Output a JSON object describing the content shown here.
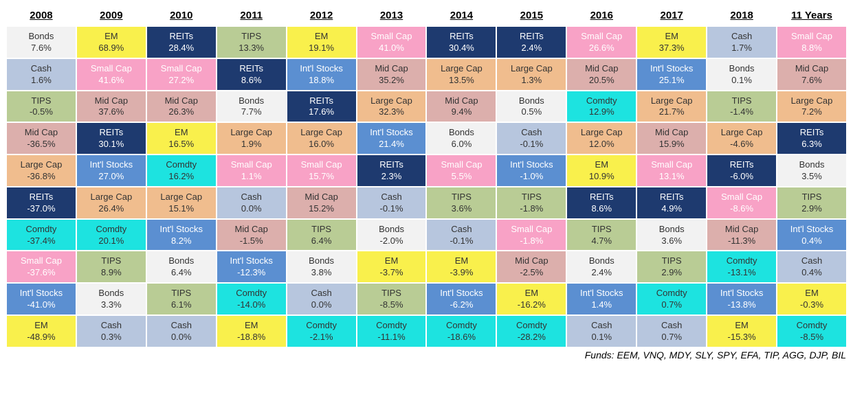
{
  "columns": [
    "2008",
    "2009",
    "2010",
    "2011",
    "2012",
    "2013",
    "2014",
    "2015",
    "2016",
    "2017",
    "2018",
    "11 Years"
  ],
  "footer": "Funds: EEM, VNQ, MDY, SLY, SPY, EFA, TIP, AGG, DJP, BIL",
  "table_bg": "#ffffff",
  "header_fontsize": 15,
  "cell_fontsize": 13,
  "palette": {
    "Bonds": {
      "bg": "#f2f2f2",
      "fg": "#333333"
    },
    "Cash": {
      "bg": "#b7c6de",
      "fg": "#333333"
    },
    "TIPS": {
      "bg": "#b9cc95",
      "fg": "#333333"
    },
    "Mid Cap": {
      "bg": "#dcafac",
      "fg": "#333333"
    },
    "Large Cap": {
      "bg": "#f0bd8e",
      "fg": "#333333"
    },
    "REITs": {
      "bg": "#1e3a6f",
      "fg": "#ffffff"
    },
    "Comdty": {
      "bg": "#1de3e0",
      "fg": "#333333"
    },
    "Small Cap": {
      "bg": "#f8a2c6",
      "fg": "#ffffff"
    },
    "Int'l Stocks": {
      "bg": "#5b8fd1",
      "fg": "#ffffff"
    },
    "EM": {
      "bg": "#f9f04c",
      "fg": "#333333"
    }
  },
  "grid": [
    [
      {
        "label": "Bonds",
        "value": "7.6%"
      },
      {
        "label": "EM",
        "value": "68.9%"
      },
      {
        "label": "REITs",
        "value": "28.4%"
      },
      {
        "label": "TIPS",
        "value": "13.3%"
      },
      {
        "label": "EM",
        "value": "19.1%"
      },
      {
        "label": "Small Cap",
        "value": "41.0%"
      },
      {
        "label": "REITs",
        "value": "30.4%"
      },
      {
        "label": "REITs",
        "value": "2.4%"
      },
      {
        "label": "Small Cap",
        "value": "26.6%"
      },
      {
        "label": "EM",
        "value": "37.3%"
      },
      {
        "label": "Cash",
        "value": "1.7%"
      },
      {
        "label": "Small Cap",
        "value": "8.8%"
      }
    ],
    [
      {
        "label": "Cash",
        "value": "1.6%"
      },
      {
        "label": "Small Cap",
        "value": "41.6%"
      },
      {
        "label": "Small Cap",
        "value": "27.2%"
      },
      {
        "label": "REITs",
        "value": "8.6%"
      },
      {
        "label": "Int'l Stocks",
        "value": "18.8%"
      },
      {
        "label": "Mid Cap",
        "value": "35.2%"
      },
      {
        "label": "Large Cap",
        "value": "13.5%"
      },
      {
        "label": "Large Cap",
        "value": "1.3%"
      },
      {
        "label": "Mid Cap",
        "value": "20.5%"
      },
      {
        "label": "Int'l Stocks",
        "value": "25.1%"
      },
      {
        "label": "Bonds",
        "value": "0.1%"
      },
      {
        "label": "Mid Cap",
        "value": "7.6%"
      }
    ],
    [
      {
        "label": "TIPS",
        "value": "-0.5%"
      },
      {
        "label": "Mid Cap",
        "value": "37.6%"
      },
      {
        "label": "Mid Cap",
        "value": "26.3%"
      },
      {
        "label": "Bonds",
        "value": "7.7%"
      },
      {
        "label": "REITs",
        "value": "17.6%"
      },
      {
        "label": "Large Cap",
        "value": "32.3%"
      },
      {
        "label": "Mid Cap",
        "value": "9.4%"
      },
      {
        "label": "Bonds",
        "value": "0.5%"
      },
      {
        "label": "Comdty",
        "value": "12.9%"
      },
      {
        "label": "Large Cap",
        "value": "21.7%"
      },
      {
        "label": "TIPS",
        "value": "-1.4%"
      },
      {
        "label": "Large Cap",
        "value": "7.2%"
      }
    ],
    [
      {
        "label": "Mid Cap",
        "value": "-36.5%"
      },
      {
        "label": "REITs",
        "value": "30.1%"
      },
      {
        "label": "EM",
        "value": "16.5%"
      },
      {
        "label": "Large Cap",
        "value": "1.9%"
      },
      {
        "label": "Large Cap",
        "value": "16.0%"
      },
      {
        "label": "Int'l Stocks",
        "value": "21.4%"
      },
      {
        "label": "Bonds",
        "value": "6.0%"
      },
      {
        "label": "Cash",
        "value": "-0.1%"
      },
      {
        "label": "Large Cap",
        "value": "12.0%"
      },
      {
        "label": "Mid Cap",
        "value": "15.9%"
      },
      {
        "label": "Large Cap",
        "value": "-4.6%"
      },
      {
        "label": "REITs",
        "value": "6.3%"
      }
    ],
    [
      {
        "label": "Large Cap",
        "value": "-36.8%"
      },
      {
        "label": "Int'l Stocks",
        "value": "27.0%"
      },
      {
        "label": "Comdty",
        "value": "16.2%"
      },
      {
        "label": "Small Cap",
        "value": "1.1%"
      },
      {
        "label": "Small Cap",
        "value": "15.7%"
      },
      {
        "label": "REITs",
        "value": "2.3%"
      },
      {
        "label": "Small Cap",
        "value": "5.5%"
      },
      {
        "label": "Int'l Stocks",
        "value": "-1.0%"
      },
      {
        "label": "EM",
        "value": "10.9%"
      },
      {
        "label": "Small Cap",
        "value": "13.1%"
      },
      {
        "label": "REITs",
        "value": "-6.0%"
      },
      {
        "label": "Bonds",
        "value": "3.5%"
      }
    ],
    [
      {
        "label": "REITs",
        "value": "-37.0%"
      },
      {
        "label": "Large Cap",
        "value": "26.4%"
      },
      {
        "label": "Large Cap",
        "value": "15.1%"
      },
      {
        "label": "Cash",
        "value": "0.0%"
      },
      {
        "label": "Mid Cap",
        "value": "15.2%"
      },
      {
        "label": "Cash",
        "value": "-0.1%"
      },
      {
        "label": "TIPS",
        "value": "3.6%"
      },
      {
        "label": "TIPS",
        "value": "-1.8%"
      },
      {
        "label": "REITs",
        "value": "8.6%"
      },
      {
        "label": "REITs",
        "value": "4.9%"
      },
      {
        "label": "Small Cap",
        "value": "-8.6%"
      },
      {
        "label": "TIPS",
        "value": "2.9%"
      }
    ],
    [
      {
        "label": "Comdty",
        "value": "-37.4%"
      },
      {
        "label": "Comdty",
        "value": "20.1%"
      },
      {
        "label": "Int'l Stocks",
        "value": "8.2%"
      },
      {
        "label": "Mid Cap",
        "value": "-1.5%"
      },
      {
        "label": "TIPS",
        "value": "6.4%"
      },
      {
        "label": "Bonds",
        "value": "-2.0%"
      },
      {
        "label": "Cash",
        "value": "-0.1%"
      },
      {
        "label": "Small Cap",
        "value": "-1.8%"
      },
      {
        "label": "TIPS",
        "value": "4.7%"
      },
      {
        "label": "Bonds",
        "value": "3.6%"
      },
      {
        "label": "Mid Cap",
        "value": "-11.3%"
      },
      {
        "label": "Int'l Stocks",
        "value": "0.4%"
      }
    ],
    [
      {
        "label": "Small Cap",
        "value": "-37.6%"
      },
      {
        "label": "TIPS",
        "value": "8.9%"
      },
      {
        "label": "Bonds",
        "value": "6.4%"
      },
      {
        "label": "Int'l Stocks",
        "value": "-12.3%"
      },
      {
        "label": "Bonds",
        "value": "3.8%"
      },
      {
        "label": "EM",
        "value": "-3.7%"
      },
      {
        "label": "EM",
        "value": "-3.9%"
      },
      {
        "label": "Mid Cap",
        "value": "-2.5%"
      },
      {
        "label": "Bonds",
        "value": "2.4%"
      },
      {
        "label": "TIPS",
        "value": "2.9%"
      },
      {
        "label": "Comdty",
        "value": "-13.1%"
      },
      {
        "label": "Cash",
        "value": "0.4%"
      }
    ],
    [
      {
        "label": "Int'l Stocks",
        "value": "-41.0%"
      },
      {
        "label": "Bonds",
        "value": "3.3%"
      },
      {
        "label": "TIPS",
        "value": "6.1%"
      },
      {
        "label": "Comdty",
        "value": "-14.0%"
      },
      {
        "label": "Cash",
        "value": "0.0%"
      },
      {
        "label": "TIPS",
        "value": "-8.5%"
      },
      {
        "label": "Int'l Stocks",
        "value": "-6.2%"
      },
      {
        "label": "EM",
        "value": "-16.2%"
      },
      {
        "label": "Int'l Stocks",
        "value": "1.4%"
      },
      {
        "label": "Comdty",
        "value": "0.7%"
      },
      {
        "label": "Int'l Stocks",
        "value": "-13.8%"
      },
      {
        "label": "EM",
        "value": "-0.3%"
      }
    ],
    [
      {
        "label": "EM",
        "value": "-48.9%"
      },
      {
        "label": "Cash",
        "value": "0.3%"
      },
      {
        "label": "Cash",
        "value": "0.0%"
      },
      {
        "label": "EM",
        "value": "-18.8%"
      },
      {
        "label": "Comdty",
        "value": "-2.1%"
      },
      {
        "label": "Comdty",
        "value": "-11.1%"
      },
      {
        "label": "Comdty",
        "value": "-18.6%"
      },
      {
        "label": "Comdty",
        "value": "-28.2%"
      },
      {
        "label": "Cash",
        "value": "0.1%"
      },
      {
        "label": "Cash",
        "value": "0.7%"
      },
      {
        "label": "EM",
        "value": "-15.3%"
      },
      {
        "label": "Comdty",
        "value": "-8.5%"
      }
    ]
  ]
}
